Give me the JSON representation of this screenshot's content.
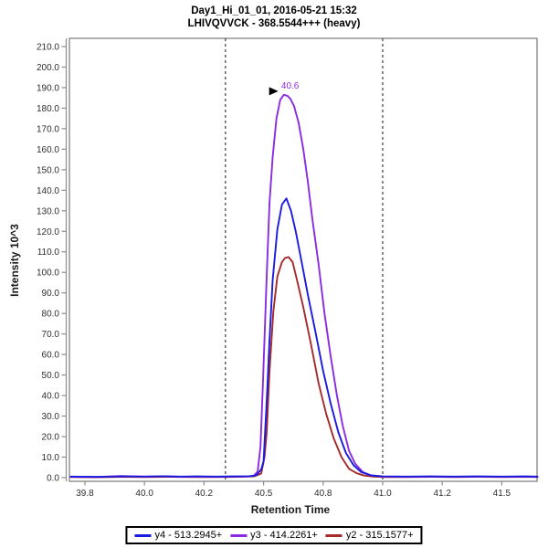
{
  "header": {
    "title_line1": "Day1_Hi_01_01, 2016-05-21 15:32",
    "title_line2": "LHIVQVVCK - 368.5544+++ (heavy)"
  },
  "axes_style": {
    "frame_color": "#8C8C8C",
    "tick_label_color": "#2E2E2E"
  },
  "chart_data": {
    "type": "line",
    "title": "Day1_Hi_01_01, 2016-05-21 15:32",
    "subtitle": "LHIVQVVCK - 368.5544+++ (heavy)",
    "xlabel": "Retention Time",
    "ylabel": "Intensity 10^3",
    "grid": false,
    "legend_position": "bottom",
    "x_domain": [
      39.685,
      41.648
    ],
    "y_domain": [
      -1.8,
      214.0
    ],
    "x_ticks": {
      "values": [
        39.75,
        40.0,
        40.25,
        40.5,
        40.75,
        41.0,
        41.25,
        41.5
      ],
      "labels": [
        "39.8",
        "40.0",
        "40.2",
        "40.5",
        "40.8",
        "41.0",
        "41.2",
        "41.5"
      ]
    },
    "y_ticks": {
      "values": [
        0,
        10,
        20,
        30,
        40,
        50,
        60,
        70,
        80,
        90,
        100,
        110,
        120,
        130,
        140,
        150,
        160,
        170,
        180,
        190,
        200,
        210
      ],
      "labels": [
        "0.0",
        "10.0",
        "20.0",
        "30.0",
        "40.0",
        "50.0",
        "60.0",
        "70.0",
        "80.0",
        "90.0",
        "100.0",
        "110.0",
        "120.0",
        "130.0",
        "140.0",
        "150.0",
        "160.0",
        "170.0",
        "180.0",
        "190.0",
        "200.0",
        "210.0"
      ]
    },
    "integration_boundaries": {
      "rt_values": [
        40.34,
        41.0
      ],
      "line_style": "dashed",
      "color": "#3C3C3C"
    },
    "peak_annotation": {
      "text": "40.6",
      "rt": 40.6,
      "value": 186.0,
      "color": "#8A2BE2",
      "arrow_color": "#000000"
    },
    "series": [
      {
        "id": "y4",
        "name": "y4 - 513.2945+",
        "color": "#1A1AE0",
        "peak_apex_rt": 40.6,
        "peak_apex_intensity": 136,
        "points": [
          [
            39.69,
            0.5
          ],
          [
            39.8,
            0.4
          ],
          [
            39.9,
            0.6
          ],
          [
            40.0,
            0.5
          ],
          [
            40.08,
            0.7
          ],
          [
            40.15,
            0.5
          ],
          [
            40.22,
            0.6
          ],
          [
            40.3,
            0.5
          ],
          [
            40.38,
            0.6
          ],
          [
            40.44,
            0.7
          ],
          [
            40.47,
            1.2
          ],
          [
            40.49,
            4
          ],
          [
            40.5,
            8
          ],
          [
            40.513,
            37
          ],
          [
            40.525,
            67
          ],
          [
            40.538,
            96
          ],
          [
            40.558,
            121
          ],
          [
            40.577,
            133
          ],
          [
            40.596,
            136
          ],
          [
            40.615,
            130
          ],
          [
            40.635,
            120
          ],
          [
            40.66,
            105
          ],
          [
            40.686,
            89
          ],
          [
            40.718,
            71
          ],
          [
            40.75,
            52
          ],
          [
            40.782,
            36
          ],
          [
            40.814,
            22
          ],
          [
            40.846,
            12
          ],
          [
            40.878,
            6
          ],
          [
            40.91,
            2.7
          ],
          [
            40.95,
            1.1
          ],
          [
            41.0,
            0.6
          ],
          [
            41.1,
            0.5
          ],
          [
            41.2,
            0.6
          ],
          [
            41.3,
            0.5
          ],
          [
            41.4,
            0.6
          ],
          [
            41.5,
            0.5
          ],
          [
            41.6,
            0.6
          ],
          [
            41.65,
            0.5
          ]
        ]
      },
      {
        "id": "y3",
        "name": "y3 - 414.2261+",
        "color": "#8A2BE2",
        "peak_apex_rt": 40.6,
        "peak_apex_intensity": 186.5,
        "points": [
          [
            39.69,
            0.4
          ],
          [
            39.8,
            0.3
          ],
          [
            39.9,
            0.8
          ],
          [
            40.0,
            0.5
          ],
          [
            40.08,
            0.7
          ],
          [
            40.15,
            0.4
          ],
          [
            40.22,
            0.5
          ],
          [
            40.3,
            0.4
          ],
          [
            40.38,
            0.5
          ],
          [
            40.44,
            0.6
          ],
          [
            40.46,
            1
          ],
          [
            40.475,
            3
          ],
          [
            40.487,
            15
          ],
          [
            40.497,
            45
          ],
          [
            40.506,
            74
          ],
          [
            40.515,
            104
          ],
          [
            40.525,
            134
          ],
          [
            40.538,
            156
          ],
          [
            40.554,
            175
          ],
          [
            40.57,
            184
          ],
          [
            40.585,
            186.5
          ],
          [
            40.6,
            186
          ],
          [
            40.613,
            184.5
          ],
          [
            40.628,
            181
          ],
          [
            40.647,
            173
          ],
          [
            40.667,
            160
          ],
          [
            40.686,
            144
          ],
          [
            40.705,
            126
          ],
          [
            40.731,
            104
          ],
          [
            40.756,
            80
          ],
          [
            40.782,
            59
          ],
          [
            40.808,
            40
          ],
          [
            40.833,
            25
          ],
          [
            40.859,
            13
          ],
          [
            40.885,
            6.7
          ],
          [
            40.917,
            2.7
          ],
          [
            40.949,
            1.2
          ],
          [
            41.0,
            0.5
          ],
          [
            41.1,
            0.4
          ],
          [
            41.2,
            0.5
          ],
          [
            41.3,
            0.4
          ],
          [
            41.4,
            0.5
          ],
          [
            41.5,
            0.4
          ],
          [
            41.6,
            0.5
          ],
          [
            41.65,
            0.4
          ]
        ]
      },
      {
        "id": "y2",
        "name": "y2 - 315.1577+",
        "color": "#A52A2A",
        "peak_apex_rt": 40.6,
        "peak_apex_intensity": 107.5,
        "points": [
          [
            39.69,
            0.3
          ],
          [
            39.8,
            0.2
          ],
          [
            39.9,
            0.4
          ],
          [
            40.0,
            0.3
          ],
          [
            40.1,
            0.4
          ],
          [
            40.2,
            0.3
          ],
          [
            40.3,
            0.3
          ],
          [
            40.4,
            0.4
          ],
          [
            40.46,
            0.6
          ],
          [
            40.49,
            2
          ],
          [
            40.504,
            10
          ],
          [
            40.513,
            22
          ],
          [
            40.525,
            52
          ],
          [
            40.541,
            81
          ],
          [
            40.558,
            98
          ],
          [
            40.577,
            105
          ],
          [
            40.59,
            107
          ],
          [
            40.605,
            107.5
          ],
          [
            40.622,
            105
          ],
          [
            40.641,
            96
          ],
          [
            40.667,
            83
          ],
          [
            40.699,
            65
          ],
          [
            40.731,
            46
          ],
          [
            40.763,
            31
          ],
          [
            40.795,
            19
          ],
          [
            40.827,
            10
          ],
          [
            40.859,
            4.3
          ],
          [
            40.891,
            2.1
          ],
          [
            40.923,
            1
          ],
          [
            40.96,
            0.5
          ],
          [
            41.0,
            0.3
          ],
          [
            41.1,
            0.3
          ],
          [
            41.2,
            0.4
          ],
          [
            41.3,
            0.3
          ],
          [
            41.4,
            0.4
          ],
          [
            41.5,
            0.3
          ],
          [
            41.6,
            0.4
          ],
          [
            41.65,
            0.3
          ]
        ]
      }
    ]
  }
}
